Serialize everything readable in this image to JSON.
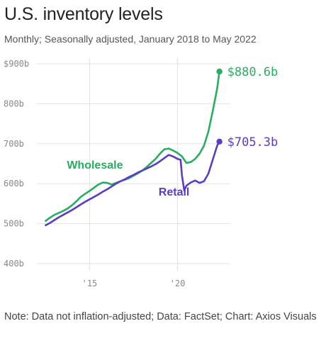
{
  "title": "U.S. inventory levels",
  "subtitle": "Monthly; Seasonally adjusted, January 2018 to May 2022",
  "note": "Note: Data not inflation-adjusted; Data: FactSet; Chart: Axios Visuals",
  "colors": {
    "wholesale": "#27ae60",
    "retail": "#5b3cc4",
    "grid": "#e3e3e3",
    "axis": "#d0d0d0"
  },
  "chart_data": {
    "type": "line",
    "ylim": [
      400,
      900
    ],
    "xlim": [
      2012.0,
      2023.0
    ],
    "yticks": [
      400,
      500,
      600,
      700,
      800,
      900
    ],
    "ytick_labels": [
      "400b",
      "500b",
      "600b",
      "700b",
      "800b",
      "$900b"
    ],
    "xticks": [
      2015,
      2020
    ],
    "xtick_labels": [
      "'15",
      "'20"
    ],
    "grid": true,
    "series": [
      {
        "name": "Wholesale",
        "key": "wholesale",
        "end_label": "$880.6b",
        "points": [
          [
            2012.5,
            507
          ],
          [
            2012.75,
            515
          ],
          [
            2013.0,
            522
          ],
          [
            2013.25,
            527
          ],
          [
            2013.5,
            532
          ],
          [
            2013.75,
            538
          ],
          [
            2014.0,
            546
          ],
          [
            2014.25,
            556
          ],
          [
            2014.5,
            567
          ],
          [
            2014.75,
            575
          ],
          [
            2015.0,
            582
          ],
          [
            2015.25,
            590
          ],
          [
            2015.5,
            598
          ],
          [
            2015.75,
            603
          ],
          [
            2016.0,
            602
          ],
          [
            2016.25,
            598
          ],
          [
            2016.5,
            602
          ],
          [
            2016.75,
            606
          ],
          [
            2017.0,
            610
          ],
          [
            2017.25,
            614
          ],
          [
            2017.5,
            620
          ],
          [
            2017.75,
            626
          ],
          [
            2018.0,
            633
          ],
          [
            2018.25,
            642
          ],
          [
            2018.5,
            652
          ],
          [
            2018.75,
            662
          ],
          [
            2019.0,
            675
          ],
          [
            2019.25,
            686
          ],
          [
            2019.5,
            688
          ],
          [
            2019.75,
            683
          ],
          [
            2020.0,
            677
          ],
          [
            2020.25,
            668
          ],
          [
            2020.5,
            652
          ],
          [
            2020.75,
            654
          ],
          [
            2021.0,
            662
          ],
          [
            2021.25,
            675
          ],
          [
            2021.5,
            695
          ],
          [
            2021.75,
            730
          ],
          [
            2022.0,
            782
          ],
          [
            2022.25,
            838
          ],
          [
            2022.38,
            880.6
          ]
        ]
      },
      {
        "name": "Retail",
        "key": "retail",
        "end_label": "$705.3b",
        "points": [
          [
            2012.5,
            496
          ],
          [
            2012.75,
            502
          ],
          [
            2013.0,
            509
          ],
          [
            2013.25,
            516
          ],
          [
            2013.5,
            522
          ],
          [
            2013.75,
            528
          ],
          [
            2014.0,
            534
          ],
          [
            2014.25,
            541
          ],
          [
            2014.5,
            548
          ],
          [
            2014.75,
            555
          ],
          [
            2015.0,
            561
          ],
          [
            2015.25,
            567
          ],
          [
            2015.5,
            573
          ],
          [
            2015.75,
            580
          ],
          [
            2016.0,
            586
          ],
          [
            2016.25,
            593
          ],
          [
            2016.5,
            600
          ],
          [
            2016.75,
            606
          ],
          [
            2017.0,
            611
          ],
          [
            2017.25,
            617
          ],
          [
            2017.5,
            622
          ],
          [
            2017.75,
            628
          ],
          [
            2018.0,
            633
          ],
          [
            2018.25,
            638
          ],
          [
            2018.5,
            643
          ],
          [
            2018.75,
            649
          ],
          [
            2019.0,
            656
          ],
          [
            2019.25,
            664
          ],
          [
            2019.5,
            672
          ],
          [
            2019.75,
            668
          ],
          [
            2020.0,
            662
          ],
          [
            2020.17,
            660
          ],
          [
            2020.25,
            620
          ],
          [
            2020.38,
            583
          ],
          [
            2020.5,
            595
          ],
          [
            2020.75,
            603
          ],
          [
            2021.0,
            608
          ],
          [
            2021.25,
            602
          ],
          [
            2021.5,
            606
          ],
          [
            2021.75,
            625
          ],
          [
            2022.0,
            660
          ],
          [
            2022.25,
            695
          ],
          [
            2022.38,
            705.3
          ]
        ]
      }
    ],
    "inline_labels": [
      {
        "series": "wholesale",
        "text": "Wholesale",
        "at": [
          2015.3,
          638
        ]
      },
      {
        "series": "retail",
        "text": "Retail",
        "at": [
          2019.8,
          570
        ]
      }
    ]
  }
}
